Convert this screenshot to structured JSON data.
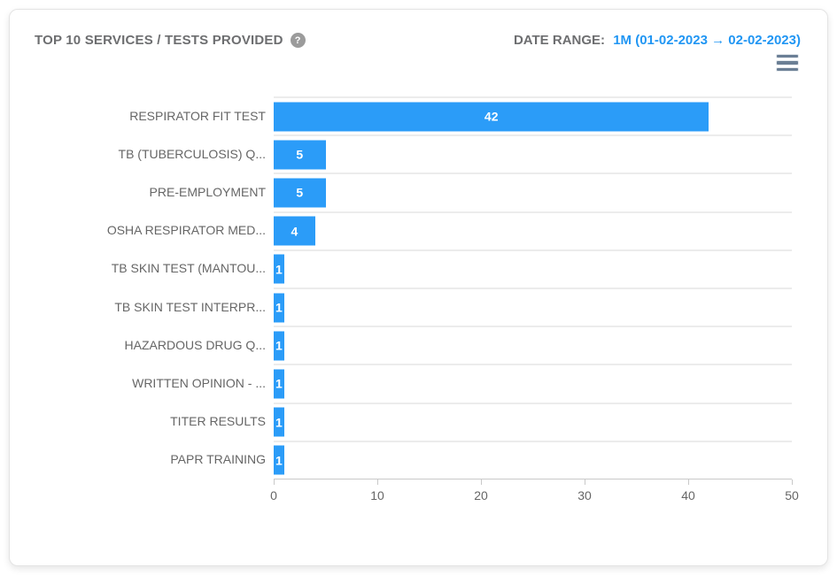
{
  "header": {
    "title": "TOP 10 SERVICES / TESTS PROVIDED",
    "help_icon_glyph": "?",
    "date_range_label": "DATE RANGE:",
    "date_range_value": "1M (01-02-2023 → 02-02-2023)"
  },
  "colors": {
    "bar": "#2b9cf8",
    "accent_text": "#2196f3",
    "title_text": "#6d6e70",
    "category_text": "#666666",
    "grid_line": "#ececec",
    "axis_line": "#c9c9c9",
    "menu_icon": "#6b7f95"
  },
  "chart_data": {
    "type": "bar",
    "orientation": "horizontal",
    "title": "TOP 10 SERVICES / TESTS PROVIDED",
    "categories": [
      "RESPIRATOR FIT TEST",
      "TB (TUBERCULOSIS) Q...",
      "PRE-EMPLOYMENT",
      "OSHA RESPIRATOR MED...",
      "TB SKIN TEST (MANTOU...",
      "TB SKIN TEST INTERPR...",
      "HAZARDOUS DRUG Q...",
      "WRITTEN OPINION - ...",
      "TITER RESULTS",
      "PAPR TRAINING"
    ],
    "values": [
      42,
      5,
      5,
      4,
      1,
      1,
      1,
      1,
      1,
      1
    ],
    "value_labels": [
      "42",
      "5",
      "5",
      "4",
      "1",
      "1",
      "1",
      "1",
      "1",
      "1"
    ],
    "xlim": [
      0,
      50
    ],
    "x_ticks": [
      0,
      10,
      20,
      30,
      40,
      50
    ],
    "x_tick_labels": [
      "0",
      "10",
      "20",
      "30",
      "40",
      "50"
    ],
    "xlabel": "",
    "ylabel": "",
    "grid": "horizontal-category-boundaries",
    "legend": "none",
    "value_label_position": "inside-center"
  }
}
